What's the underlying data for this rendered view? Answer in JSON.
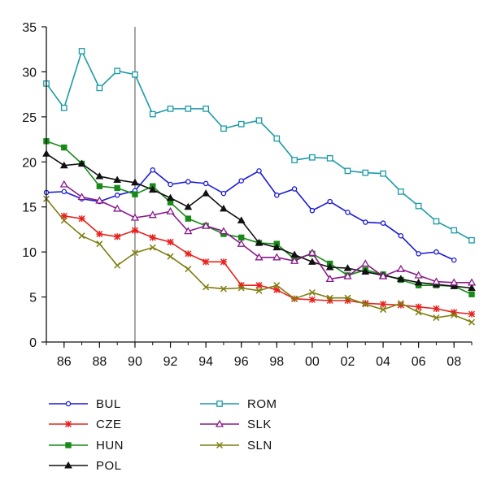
{
  "chart_data": {
    "type": "line",
    "title": "",
    "xlabel": "",
    "ylabel": "",
    "xlim": [
      1985,
      2009
    ],
    "ylim": [
      0,
      35
    ],
    "x_ticks": [
      1986,
      1988,
      1990,
      1992,
      1994,
      1996,
      1998,
      2000,
      2002,
      2004,
      2006,
      2008
    ],
    "x_tick_labels": [
      "86",
      "88",
      "90",
      "92",
      "94",
      "96",
      "98",
      "00",
      "02",
      "04",
      "06",
      "08"
    ],
    "y_ticks": [
      0,
      5,
      10,
      15,
      20,
      25,
      30,
      35
    ],
    "y_tick_labels": [
      "0",
      "5",
      "10",
      "15",
      "20",
      "25",
      "30",
      "35"
    ],
    "reference_line_x": 1990,
    "grid": false,
    "legend_placement": "bottom",
    "series": [
      {
        "name": "BUL",
        "color": "#1a1ad6",
        "marker": "circle",
        "x": [
          1985,
          1986,
          1987,
          1988,
          1989,
          1990,
          1991,
          1992,
          1993,
          1994,
          1995,
          1996,
          1997,
          1998,
          1999,
          2000,
          2001,
          2002,
          2003,
          2004,
          2005,
          2006,
          2007,
          2008
        ],
        "values": [
          16.6,
          16.7,
          15.9,
          15.6,
          16.3,
          16.8,
          19.1,
          17.5,
          17.8,
          17.6,
          16.5,
          17.9,
          19.0,
          16.3,
          17.0,
          14.6,
          15.6,
          14.4,
          13.3,
          13.2,
          11.8,
          9.8,
          10.0,
          9.1
        ]
      },
      {
        "name": "CZE",
        "color": "#e8231f",
        "marker": "asterisk",
        "x": [
          1986,
          1987,
          1988,
          1989,
          1990,
          1991,
          1992,
          1993,
          1994,
          1995,
          1996,
          1997,
          1998,
          1999,
          2000,
          2001,
          2002,
          2003,
          2004,
          2005,
          2006,
          2007,
          2008,
          2009
        ],
        "values": [
          14.0,
          13.7,
          12.0,
          11.7,
          12.4,
          11.6,
          11.1,
          9.8,
          8.9,
          8.9,
          6.3,
          6.3,
          5.8,
          4.8,
          4.7,
          4.6,
          4.6,
          4.3,
          4.2,
          4.1,
          3.9,
          3.7,
          3.3,
          3.1
        ]
      },
      {
        "name": "HUN",
        "color": "#178a17",
        "marker": "square",
        "x": [
          1985,
          1986,
          1987,
          1988,
          1989,
          1990,
          1991,
          1992,
          1993,
          1994,
          1995,
          1996,
          1997,
          1998,
          1999,
          2000,
          2001,
          2002,
          2003,
          2004,
          2005,
          2006,
          2007,
          2008,
          2009
        ],
        "values": [
          22.3,
          21.6,
          19.8,
          17.3,
          17.1,
          16.4,
          17.3,
          15.5,
          13.7,
          12.9,
          12.0,
          11.6,
          11.0,
          10.9,
          9.2,
          9.8,
          8.7,
          7.4,
          8.0,
          7.5,
          6.9,
          6.3,
          6.3,
          6.2,
          5.3
        ]
      },
      {
        "name": "POL",
        "color": "#111111",
        "marker": "triangle",
        "x": [
          1985,
          1986,
          1987,
          1988,
          1989,
          1990,
          1991,
          1992,
          1993,
          1994,
          1995,
          1996,
          1997,
          1998,
          1999,
          2000,
          2001,
          2002,
          2003,
          2004,
          2005,
          2006,
          2007,
          2008,
          2009
        ],
        "values": [
          20.9,
          19.6,
          19.8,
          18.4,
          18.0,
          17.7,
          16.9,
          16.0,
          15.0,
          16.5,
          14.8,
          13.5,
          11.0,
          10.5,
          9.7,
          8.9,
          8.3,
          8.2,
          7.8,
          7.4,
          7.0,
          6.6,
          6.4,
          6.2,
          6.0
        ]
      },
      {
        "name": "ROM",
        "color": "#1a9aa6",
        "marker": "square-open",
        "x": [
          1985,
          1986,
          1987,
          1988,
          1989,
          1990,
          1991,
          1992,
          1993,
          1994,
          1995,
          1996,
          1997,
          1998,
          1999,
          2000,
          2001,
          2002,
          2003,
          2004,
          2005,
          2006,
          2007,
          2008,
          2009
        ],
        "values": [
          28.7,
          26.0,
          32.3,
          28.2,
          30.1,
          29.7,
          25.3,
          25.9,
          25.9,
          25.9,
          23.7,
          24.2,
          24.6,
          22.6,
          20.2,
          20.5,
          20.4,
          19.0,
          18.8,
          18.7,
          16.7,
          15.1,
          13.4,
          12.4,
          11.3
        ]
      },
      {
        "name": "SLK",
        "color": "#8a1a8a",
        "marker": "triangle-open",
        "x": [
          1986,
          1987,
          1988,
          1989,
          1990,
          1991,
          1992,
          1993,
          1994,
          1995,
          1996,
          1997,
          1998,
          1999,
          2000,
          2001,
          2002,
          2003,
          2004,
          2005,
          2006,
          2007,
          2008,
          2009
        ],
        "values": [
          17.5,
          16.1,
          15.7,
          14.8,
          13.8,
          14.1,
          14.5,
          12.3,
          12.9,
          12.3,
          10.9,
          9.4,
          9.4,
          9.0,
          9.9,
          7.0,
          7.3,
          8.7,
          7.3,
          8.1,
          7.4,
          6.7,
          6.6,
          6.6
        ]
      },
      {
        "name": "SLN",
        "color": "#7f7f13",
        "marker": "x",
        "x": [
          1985,
          1986,
          1987,
          1988,
          1989,
          1990,
          1991,
          1992,
          1993,
          1994,
          1995,
          1996,
          1997,
          1998,
          1999,
          2000,
          2001,
          2002,
          2003,
          2004,
          2005,
          2006,
          2007,
          2008,
          2009
        ],
        "values": [
          15.9,
          13.5,
          11.8,
          10.9,
          8.5,
          9.9,
          10.5,
          9.5,
          8.1,
          6.1,
          5.9,
          6.0,
          5.7,
          6.3,
          4.8,
          5.5,
          4.9,
          4.9,
          4.2,
          3.6,
          4.3,
          3.3,
          2.7,
          3.0,
          2.2
        ]
      }
    ]
  }
}
